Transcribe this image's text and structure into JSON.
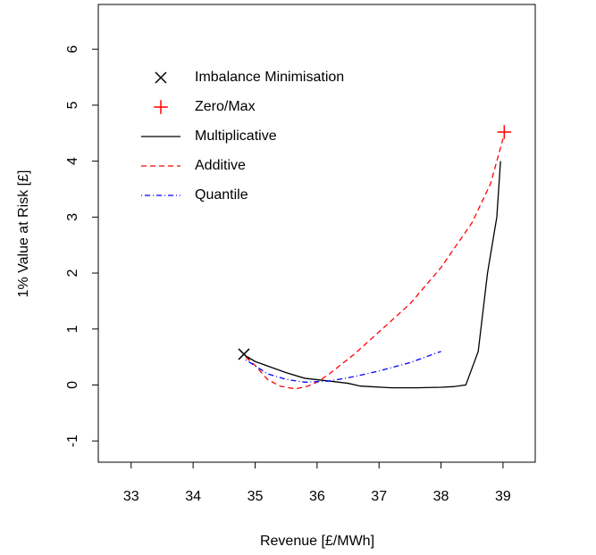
{
  "chart_data": {
    "type": "line",
    "xlabel": "Revenue [£/MWh]",
    "ylabel": "1% Value at Risk [£]",
    "xlim": [
      32.47,
      39.52
    ],
    "ylim": [
      -1.38,
      6.8
    ],
    "xticks": [
      33,
      34,
      35,
      36,
      37,
      38,
      39
    ],
    "yticks": [
      -1,
      0,
      1,
      2,
      3,
      4,
      5,
      6
    ],
    "legend": "topleft",
    "series": [
      {
        "name": "Imbalance Minimisation",
        "color": "#000000",
        "marker": "x",
        "x": [
          34.82
        ],
        "values": [
          0.55
        ]
      },
      {
        "name": "Zero/Max",
        "color": "#ff0000",
        "marker": "+",
        "x": [
          39.02
        ],
        "values": [
          4.52
        ]
      },
      {
        "name": "Multiplicative",
        "color": "#000000",
        "dash": "solid",
        "x": [
          34.85,
          35.0,
          35.3,
          35.5,
          35.8,
          36.2,
          36.5,
          36.7,
          37.2,
          37.6,
          38.0,
          38.2,
          38.4,
          38.6,
          38.75,
          38.9,
          38.96
        ],
        "values": [
          0.52,
          0.42,
          0.3,
          0.22,
          0.12,
          0.07,
          0.03,
          -0.02,
          -0.05,
          -0.05,
          -0.04,
          -0.03,
          0.0,
          0.6,
          2.0,
          3.0,
          4.0
        ]
      },
      {
        "name": "Additive",
        "color": "#ff0000",
        "dash": "dashed",
        "x": [
          34.85,
          35.0,
          35.2,
          35.4,
          35.65,
          35.85,
          36.0,
          36.2,
          36.6,
          37.0,
          37.5,
          38.0,
          38.5,
          38.8,
          39.0
        ],
        "values": [
          0.5,
          0.35,
          0.1,
          -0.02,
          -0.07,
          -0.02,
          0.05,
          0.2,
          0.55,
          0.95,
          1.45,
          2.1,
          2.9,
          3.6,
          4.4
        ]
      },
      {
        "name": "Quantile",
        "color": "#0000ff",
        "dash": "dotdash",
        "x": [
          34.85,
          35.2,
          35.5,
          35.8,
          36.2,
          36.6,
          37.0,
          37.5,
          38.0
        ],
        "values": [
          0.45,
          0.2,
          0.1,
          0.05,
          0.07,
          0.15,
          0.25,
          0.4,
          0.6
        ]
      }
    ]
  }
}
